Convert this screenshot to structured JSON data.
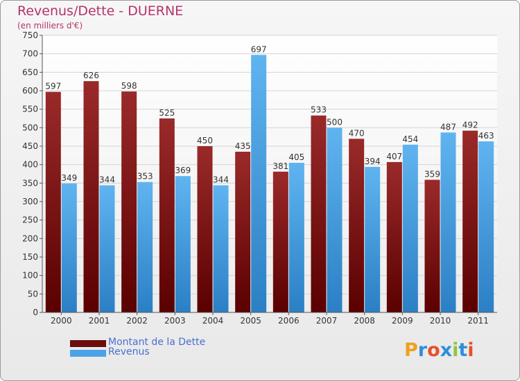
{
  "title": "Revenus/Dette - DUERNE",
  "subtitle": "(en milliers d'€)",
  "chart_data": {
    "type": "bar",
    "title": "Revenus/Dette - DUERNE",
    "subtitle": "(en milliers d'€)",
    "categories": [
      "2000",
      "2001",
      "2002",
      "2003",
      "2004",
      "2005",
      "2006",
      "2007",
      "2008",
      "2009",
      "2010",
      "2011"
    ],
    "series": [
      {
        "name": "Montant de la Dette",
        "values": [
          597,
          626,
          598,
          525,
          450,
          435,
          381,
          533,
          470,
          407,
          359,
          492
        ],
        "color": "#8b1a1a"
      },
      {
        "name": "Revenus",
        "values": [
          349,
          344,
          353,
          369,
          344,
          697,
          405,
          500,
          394,
          454,
          487,
          463
        ],
        "color": "#4aa3e6"
      }
    ],
    "ylim": [
      0,
      750
    ],
    "ytick_step": 50,
    "grid": true,
    "legend_position": "bottom-left"
  },
  "legend": {
    "items": [
      {
        "label": "Montant de la Dette",
        "color": "#6b0d0d"
      },
      {
        "label": "Revenus",
        "color": "#4aa3e6"
      }
    ]
  },
  "logo": {
    "text": "Proxiti"
  }
}
